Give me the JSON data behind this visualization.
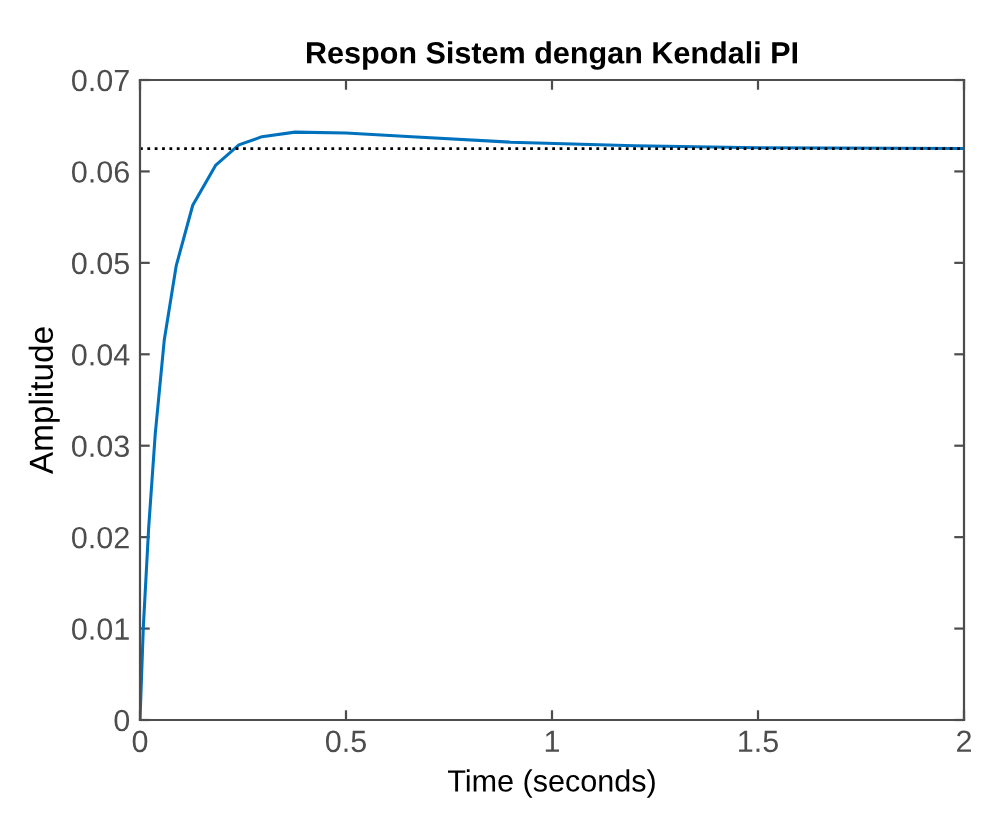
{
  "chart_data": {
    "type": "line",
    "title": "Respon Sistem dengan Kendali PI",
    "xlabel": "Time (seconds)",
    "ylabel": "Amplitude",
    "x": [
      0,
      0.008,
      0.021,
      0.037,
      0.059,
      0.088,
      0.128,
      0.184,
      0.24,
      0.296,
      0.376,
      0.5,
      0.66,
      0.9,
      1.2,
      1.5,
      2.0
    ],
    "series": [
      {
        "color": "#0072bd",
        "values": [
          0,
          0.0101,
          0.021,
          0.0313,
          0.0416,
          0.0497,
          0.0563,
          0.0607,
          0.0629,
          0.0638,
          0.0643,
          0.0642,
          0.0638,
          0.0632,
          0.0628,
          0.0626,
          0.0625
        ]
      }
    ],
    "ref_lines": [
      {
        "axis": "y",
        "value": 0.0625,
        "color": "#000000",
        "line_style": "dotted"
      }
    ],
    "xlim": [
      0,
      2
    ],
    "xticks": [
      0,
      0.5,
      1,
      1.5,
      2
    ],
    "ylim": [
      0,
      0.07
    ],
    "yticks": [
      0,
      0.01,
      0.02,
      0.03,
      0.04,
      0.05,
      0.06,
      0.07
    ],
    "grid": false,
    "legend": false,
    "marker": "none",
    "line_style": "solid"
  }
}
